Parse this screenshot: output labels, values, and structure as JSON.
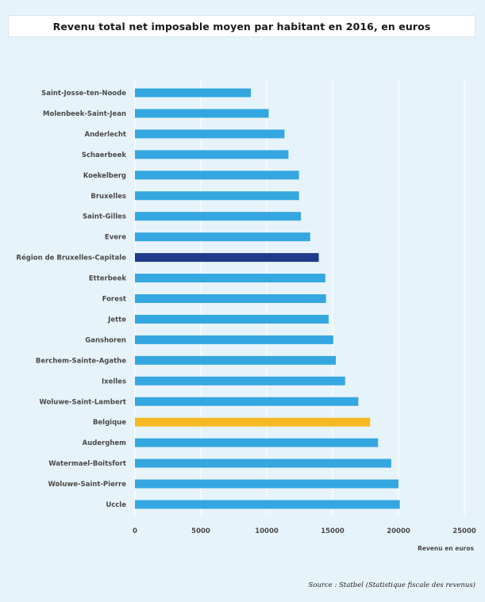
{
  "title": "Revenu total net imposable moyen par habitant en 2016, en euros",
  "source": "Source : Statbel (Statistique fiscale des revenus)",
  "colors": {
    "background": "#e7f3fb",
    "bar_default": "#35a7e0",
    "bar_region": "#1f3a8a",
    "bar_belgium": "#f6b921",
    "gridline": "#ffffff",
    "text": "#4a4a4a"
  },
  "chart_data": {
    "type": "bar",
    "orientation": "horizontal",
    "xlabel": "Revenu en euros",
    "xlim": [
      0,
      25000
    ],
    "xticks": [
      "0",
      "5000",
      "10000",
      "15000",
      "20000",
      "25000"
    ],
    "grid": true,
    "categories": [
      "Saint-Josse-ten-Noode",
      "Molenbeek-Saint-Jean",
      "Anderlecht",
      "Schaerbeek",
      "Koekelberg",
      "Bruxelles",
      "Saint-Gilles",
      "Evere",
      "Région de Bruxelles-Capitale",
      "Etterbeek",
      "Forest",
      "Jette",
      "Ganshoren",
      "Berchem-Sainte-Agathe",
      "Ixelles",
      "Woluwe-Saint-Lambert",
      "Belgique",
      "Auderghem",
      "Watermael-Boitsfort",
      "Woluwe-Saint-Pierre",
      "Uccle"
    ],
    "values": [
      8800,
      10150,
      11350,
      11650,
      12450,
      12450,
      12600,
      13300,
      13950,
      14450,
      14500,
      14700,
      15050,
      15250,
      15950,
      16950,
      17850,
      18450,
      19450,
      20000,
      20100
    ],
    "highlight": {
      "Région de Bruxelles-Capitale": "region",
      "Belgique": "belgium"
    }
  }
}
